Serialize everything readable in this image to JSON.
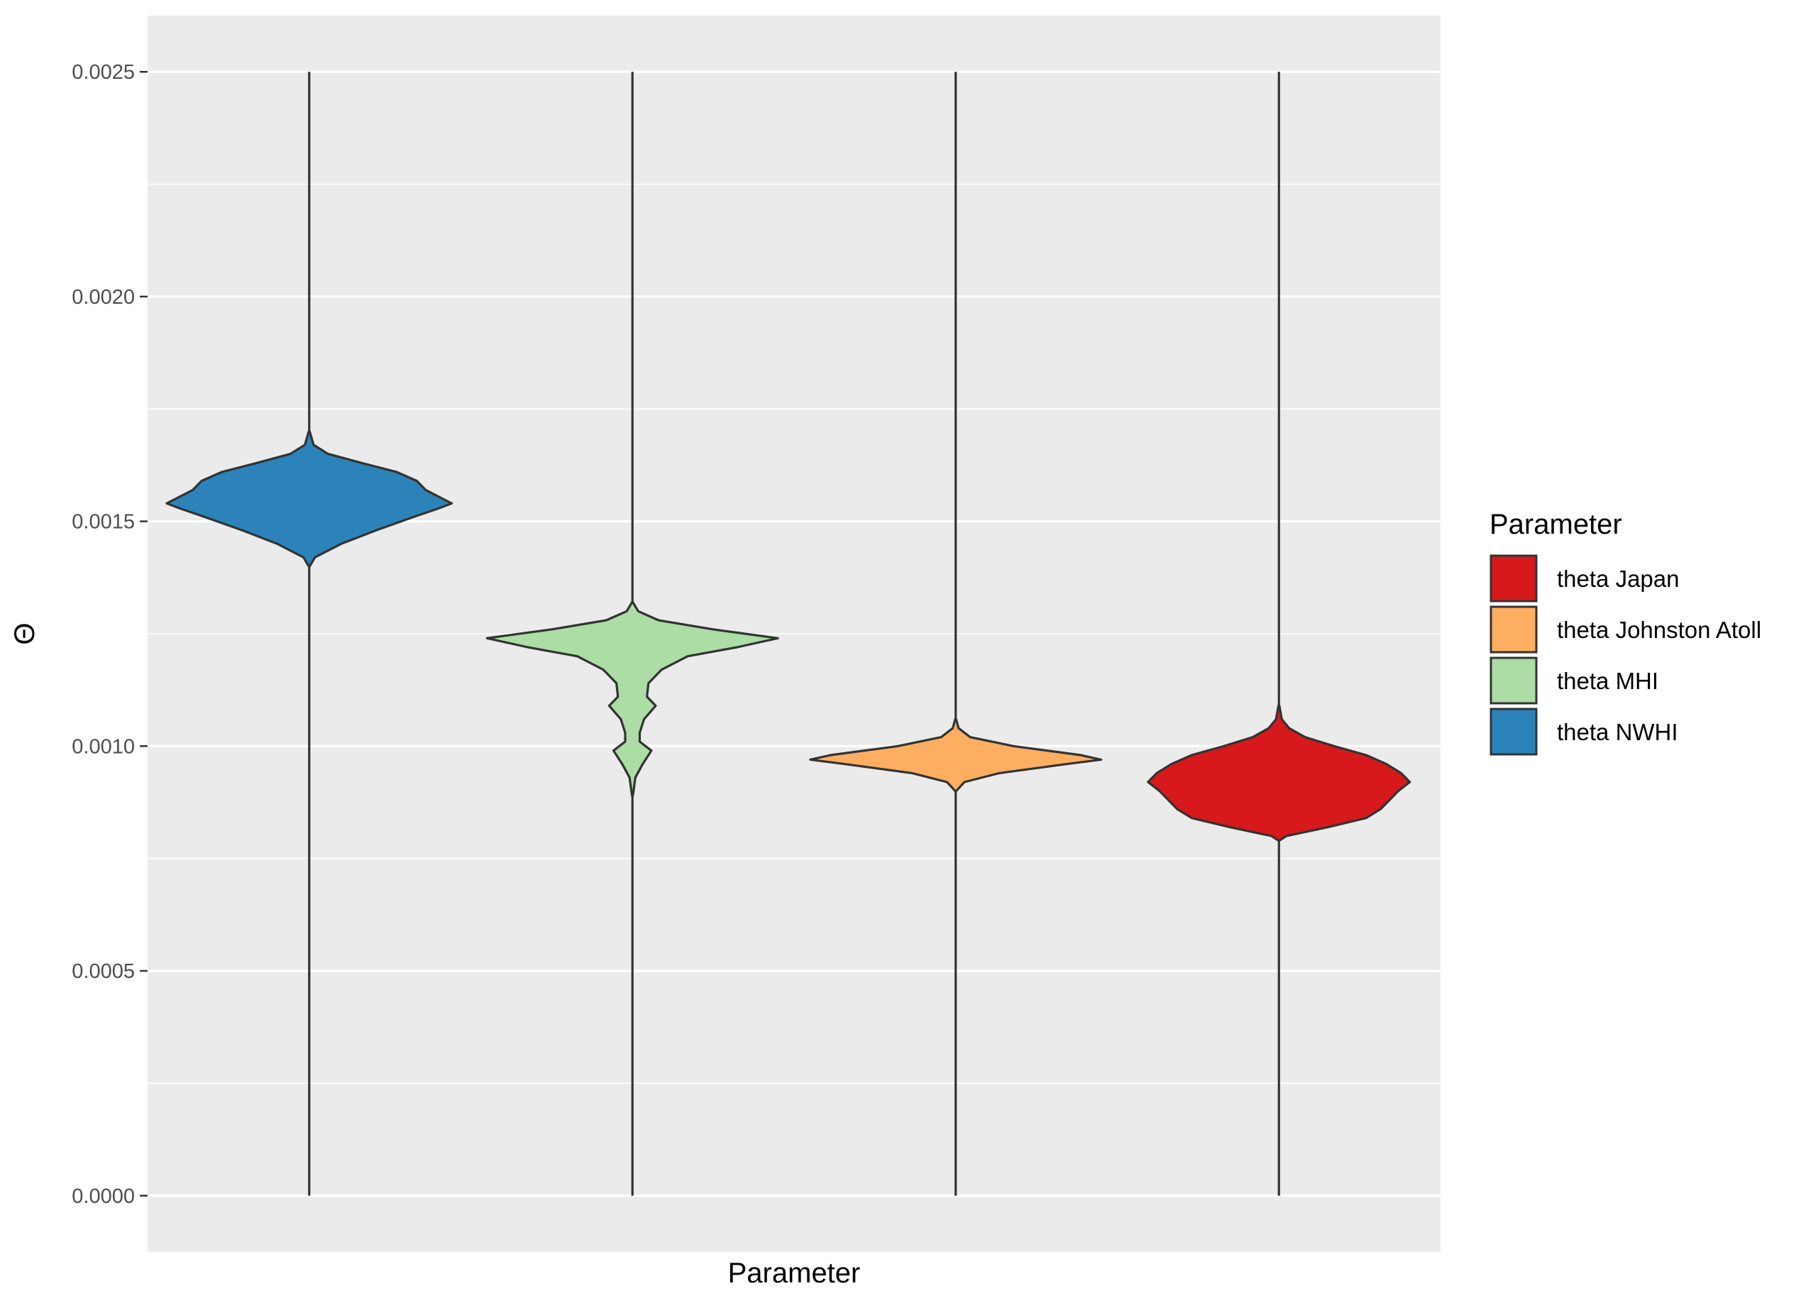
{
  "chart_data": {
    "type": "violin",
    "xlabel": "Parameter",
    "ylabel": "Θ",
    "ylim": [
      -0.000125,
      0.002625
    ],
    "y_ticks": [
      "0.0000",
      "0.0005",
      "0.0010",
      "0.0015",
      "0.0020",
      "0.0025"
    ],
    "y_tick_values": [
      0,
      0.0005,
      0.001,
      0.0015,
      0.002,
      0.0025
    ],
    "grid": true,
    "legend": {
      "title": "Parameter",
      "position": "right",
      "entries": [
        {
          "label": "theta Japan",
          "color": "#d7191c"
        },
        {
          "label": "theta Johnston Atoll",
          "color": "#fdae61"
        },
        {
          "label": "theta MHI",
          "color": "#abdda4"
        },
        {
          "label": "theta NWHI",
          "color": "#2b83ba"
        }
      ]
    },
    "series": [
      {
        "label": "theta NWHI",
        "color": "#2b83ba",
        "range": [
          0,
          0.0025
        ],
        "density": [
          [
            0.0014,
            0.003
          ],
          [
            0.00142,
            0.04
          ],
          [
            0.00145,
            0.22
          ],
          [
            0.00148,
            0.46
          ],
          [
            0.00151,
            0.72
          ],
          [
            0.00153,
            0.9
          ],
          [
            0.00154,
            0.98
          ],
          [
            0.00155,
            0.92
          ],
          [
            0.00157,
            0.8
          ],
          [
            0.00159,
            0.74
          ],
          [
            0.00161,
            0.6
          ],
          [
            0.00163,
            0.36
          ],
          [
            0.00165,
            0.13
          ],
          [
            0.00167,
            0.03
          ],
          [
            0.0017,
            0.003
          ]
        ]
      },
      {
        "label": "theta MHI",
        "color": "#abdda4",
        "range": [
          0,
          0.0025
        ],
        "density": [
          [
            0.00089,
            0.003
          ],
          [
            0.00093,
            0.02
          ],
          [
            0.00096,
            0.07
          ],
          [
            0.00099,
            0.13
          ],
          [
            0.00101,
            0.05
          ],
          [
            0.00103,
            0.05
          ],
          [
            0.00106,
            0.08
          ],
          [
            0.00109,
            0.16
          ],
          [
            0.00111,
            0.1
          ],
          [
            0.00114,
            0.11
          ],
          [
            0.00117,
            0.2
          ],
          [
            0.0012,
            0.38
          ],
          [
            0.00122,
            0.72
          ],
          [
            0.00124,
            1.0
          ],
          [
            0.00126,
            0.55
          ],
          [
            0.00128,
            0.18
          ],
          [
            0.0013,
            0.04
          ],
          [
            0.00132,
            0.003
          ]
        ]
      },
      {
        "label": "theta Johnston Atoll",
        "color": "#fdae61",
        "range": [
          0,
          0.0025
        ],
        "density": [
          [
            0.0009,
            0.003
          ],
          [
            0.00092,
            0.06
          ],
          [
            0.00094,
            0.3
          ],
          [
            0.00096,
            0.76
          ],
          [
            0.00097,
            1.0
          ],
          [
            0.00098,
            0.86
          ],
          [
            0.001,
            0.4
          ],
          [
            0.00102,
            0.1
          ],
          [
            0.00104,
            0.02
          ],
          [
            0.00106,
            0.003
          ]
        ]
      },
      {
        "label": "theta Japan",
        "color": "#d7191c",
        "range": [
          0,
          0.0025
        ],
        "density": [
          [
            0.00079,
            0.003
          ],
          [
            0.0008,
            0.05
          ],
          [
            0.00082,
            0.34
          ],
          [
            0.00084,
            0.6
          ],
          [
            0.00086,
            0.7
          ],
          [
            0.00088,
            0.76
          ],
          [
            0.0009,
            0.82
          ],
          [
            0.00092,
            0.9
          ],
          [
            0.00094,
            0.84
          ],
          [
            0.00096,
            0.74
          ],
          [
            0.00098,
            0.6
          ],
          [
            0.001,
            0.38
          ],
          [
            0.00102,
            0.18
          ],
          [
            0.00104,
            0.07
          ],
          [
            0.00106,
            0.02
          ],
          [
            0.00109,
            0.003
          ]
        ]
      }
    ]
  }
}
